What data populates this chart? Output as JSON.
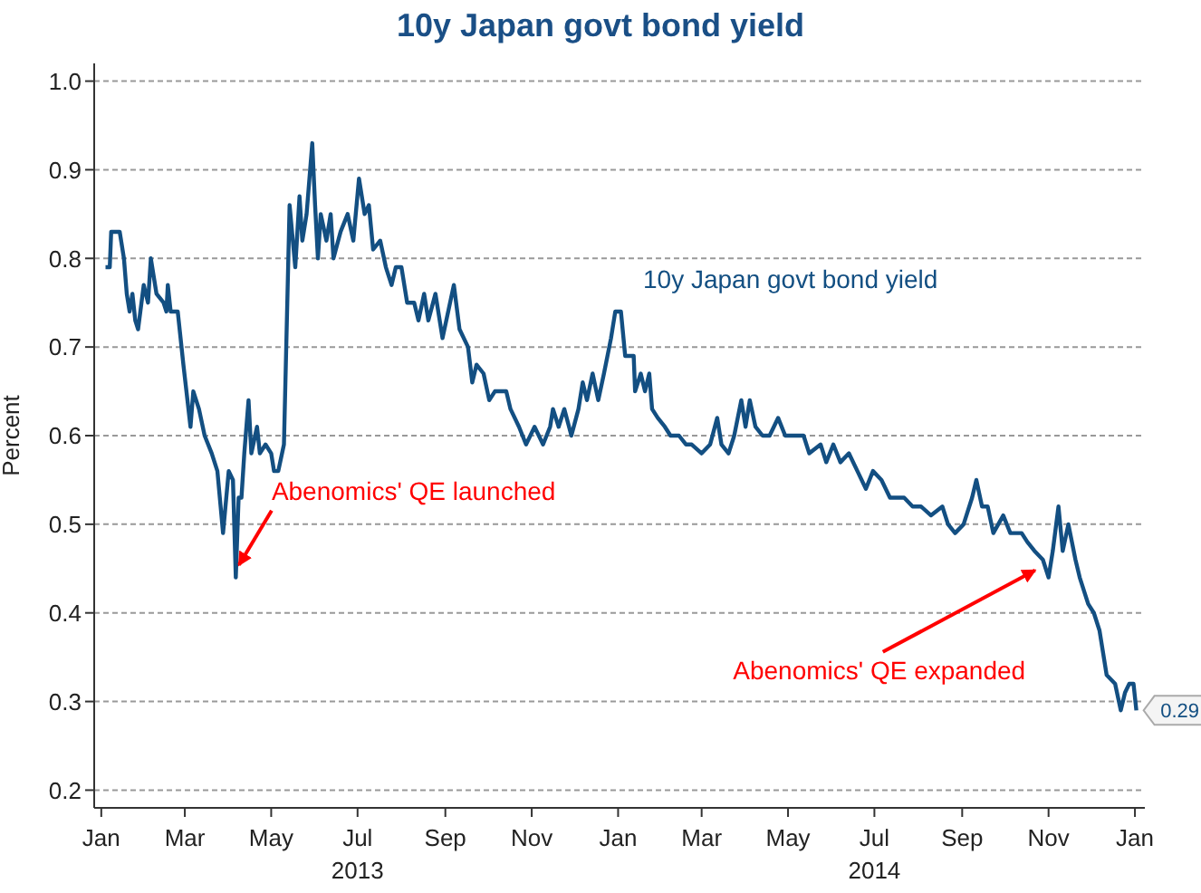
{
  "chart_data": {
    "type": "line",
    "title": "10y Japan govt bond yield",
    "ylabel": "Percent",
    "grid": "y",
    "legend": false,
    "marker": "none",
    "line_style": "solid",
    "xlim": [
      "2012-12-27",
      "2015-01-08"
    ],
    "xticks": [
      {
        "value": "2013-01-01",
        "label": "Jan"
      },
      {
        "value": "2013-03-01",
        "label": "Mar"
      },
      {
        "value": "2013-05-01",
        "label": "May"
      },
      {
        "value": "2013-07-01",
        "label": "Jul\n2013"
      },
      {
        "value": "2013-09-01",
        "label": "Sep"
      },
      {
        "value": "2013-11-01",
        "label": "Nov"
      },
      {
        "value": "2014-01-01",
        "label": "Jan"
      },
      {
        "value": "2014-03-01",
        "label": "Mar"
      },
      {
        "value": "2014-05-01",
        "label": "May"
      },
      {
        "value": "2014-07-01",
        "label": "Jul\n2014"
      },
      {
        "value": "2014-09-01",
        "label": "Sep"
      },
      {
        "value": "2014-11-01",
        "label": "Nov"
      },
      {
        "value": "2015-01-01",
        "label": "Jan"
      }
    ],
    "ylim": [
      0.18,
      1.02
    ],
    "yticks": [
      0.2,
      0.3,
      0.4,
      0.5,
      0.6,
      0.7,
      0.8,
      0.9,
      {
        "value": 1,
        "label": "1.0"
      }
    ],
    "annotations": [
      {
        "text": "Abenomics' QE launched",
        "x": "2013-04-07",
        "y": 0.45
      },
      {
        "text": "Abenomics' QE expanded",
        "x": "2014-10-25",
        "y": 0.45
      }
    ],
    "x": [
      "2013-01-04",
      "2013-01-07",
      "2013-01-08",
      "2013-01-14",
      "2013-01-15",
      "2013-01-17",
      "2013-01-19",
      "2013-01-21",
      "2013-01-23",
      "2013-01-25",
      "2013-01-27",
      "2013-01-31",
      "2013-02-03",
      "2013-02-05",
      "2013-02-09",
      "2013-02-14",
      "2013-02-16",
      "2013-02-17",
      "2013-02-19",
      "2013-02-24",
      "2013-02-28",
      "2013-03-05",
      "2013-03-07",
      "2013-03-11",
      "2013-03-15",
      "2013-03-20",
      "2013-03-24",
      "2013-03-28",
      "2013-04-01",
      "2013-04-04",
      "2013-04-06",
      "2013-04-08",
      "2013-04-10",
      "2013-04-12",
      "2013-04-15",
      "2013-04-17",
      "2013-04-21",
      "2013-04-23",
      "2013-04-27",
      "2013-05-01",
      "2013-05-03",
      "2013-05-06",
      "2013-05-10",
      "2013-05-14",
      "2013-05-18",
      "2013-05-21",
      "2013-05-23",
      "2013-05-26",
      "2013-05-30",
      "2013-06-01",
      "2013-06-03",
      "2013-06-05",
      "2013-06-09",
      "2013-06-12",
      "2013-06-14",
      "2013-06-19",
      "2013-06-24",
      "2013-06-28",
      "2013-07-02",
      "2013-07-06",
      "2013-07-09",
      "2013-07-12",
      "2013-07-17",
      "2013-07-21",
      "2013-07-25",
      "2013-07-28",
      "2013-08-01",
      "2013-08-05",
      "2013-08-10",
      "2013-08-13",
      "2013-08-17",
      "2013-08-20",
      "2013-08-25",
      "2013-08-30",
      "2013-09-03",
      "2013-09-07",
      "2013-09-11",
      "2013-09-17",
      "2013-09-20",
      "2013-09-23",
      "2013-09-28",
      "2013-10-02",
      "2013-10-06",
      "2013-10-14",
      "2013-10-17",
      "2013-10-23",
      "2013-10-28",
      "2013-11-03",
      "2013-11-09",
      "2013-11-14",
      "2013-11-16",
      "2013-11-20",
      "2013-11-24",
      "2013-11-29",
      "2013-12-04",
      "2013-12-07",
      "2013-12-10",
      "2013-12-14",
      "2013-12-18",
      "2013-12-22",
      "2013-12-27",
      "2013-12-30",
      "2014-01-03",
      "2014-01-06",
      "2014-01-12",
      "2014-01-13",
      "2014-01-17",
      "2014-01-20",
      "2014-01-23",
      "2014-01-25",
      "2014-01-29",
      "2014-02-03",
      "2014-02-07",
      "2014-02-13",
      "2014-02-18",
      "2014-02-22",
      "2014-03-01",
      "2014-03-07",
      "2014-03-12",
      "2014-03-15",
      "2014-03-20",
      "2014-03-24",
      "2014-03-29",
      "2014-04-01",
      "2014-04-04",
      "2014-04-08",
      "2014-04-13",
      "2014-04-18",
      "2014-04-24",
      "2014-04-29",
      "2014-05-06",
      "2014-05-12",
      "2014-05-16",
      "2014-05-24",
      "2014-05-28",
      "2014-06-02",
      "2014-06-07",
      "2014-06-13",
      "2014-06-19",
      "2014-06-25",
      "2014-06-30",
      "2014-07-06",
      "2014-07-12",
      "2014-07-17",
      "2014-07-22",
      "2014-07-28",
      "2014-08-03",
      "2014-08-10",
      "2014-08-18",
      "2014-08-22",
      "2014-08-27",
      "2014-09-02",
      "2014-09-08",
      "2014-09-11",
      "2014-09-15",
      "2014-09-19",
      "2014-09-23",
      "2014-09-30",
      "2014-10-05",
      "2014-10-13",
      "2014-10-17",
      "2014-10-22",
      "2014-10-28",
      "2014-11-01",
      "2014-11-04",
      "2014-11-08",
      "2014-11-11",
      "2014-11-15",
      "2014-11-20",
      "2014-11-23",
      "2014-11-29",
      "2014-12-03",
      "2014-12-07",
      "2014-12-12",
      "2014-12-18",
      "2014-12-22",
      "2014-12-25",
      "2014-12-28",
      "2014-12-31",
      "2015-01-02"
    ],
    "series": [
      {
        "name": "10y Japan govt bond yield",
        "color": "#134f82",
        "values": [
          0.79,
          0.79,
          0.83,
          0.83,
          0.82,
          0.8,
          0.76,
          0.74,
          0.76,
          0.73,
          0.72,
          0.77,
          0.75,
          0.8,
          0.76,
          0.75,
          0.74,
          0.77,
          0.74,
          0.74,
          0.68,
          0.61,
          0.65,
          0.63,
          0.6,
          0.58,
          0.56,
          0.49,
          0.56,
          0.55,
          0.44,
          0.53,
          0.53,
          0.58,
          0.64,
          0.58,
          0.61,
          0.58,
          0.59,
          0.58,
          0.56,
          0.56,
          0.59,
          0.86,
          0.79,
          0.87,
          0.82,
          0.85,
          0.93,
          0.86,
          0.8,
          0.85,
          0.82,
          0.85,
          0.8,
          0.83,
          0.85,
          0.82,
          0.89,
          0.85,
          0.86,
          0.81,
          0.82,
          0.79,
          0.77,
          0.79,
          0.79,
          0.75,
          0.75,
          0.73,
          0.76,
          0.73,
          0.76,
          0.71,
          0.74,
          0.77,
          0.72,
          0.7,
          0.66,
          0.68,
          0.67,
          0.64,
          0.65,
          0.65,
          0.63,
          0.61,
          0.59,
          0.61,
          0.59,
          0.61,
          0.63,
          0.61,
          0.63,
          0.6,
          0.63,
          0.66,
          0.64,
          0.67,
          0.64,
          0.67,
          0.71,
          0.74,
          0.74,
          0.69,
          0.69,
          0.65,
          0.67,
          0.65,
          0.67,
          0.63,
          0.62,
          0.61,
          0.6,
          0.6,
          0.59,
          0.59,
          0.58,
          0.59,
          0.62,
          0.59,
          0.58,
          0.6,
          0.64,
          0.61,
          0.64,
          0.61,
          0.6,
          0.6,
          0.62,
          0.6,
          0.6,
          0.6,
          0.58,
          0.59,
          0.57,
          0.59,
          0.57,
          0.58,
          0.56,
          0.54,
          0.56,
          0.55,
          0.53,
          0.53,
          0.53,
          0.52,
          0.52,
          0.51,
          0.52,
          0.5,
          0.49,
          0.5,
          0.53,
          0.55,
          0.52,
          0.52,
          0.49,
          0.51,
          0.49,
          0.49,
          0.48,
          0.47,
          0.46,
          0.44,
          0.47,
          0.52,
          0.47,
          0.5,
          0.46,
          0.44,
          0.41,
          0.4,
          0.38,
          0.33,
          0.32,
          0.29,
          0.31,
          0.32,
          0.32,
          0.29
        ],
        "value_labels": [
          null,
          null,
          null,
          null,
          null,
          null,
          null,
          null,
          null,
          null,
          null,
          null,
          null,
          null,
          null,
          null,
          null,
          null,
          null,
          null,
          null,
          null,
          null,
          null,
          null,
          null,
          null,
          null,
          null,
          null,
          null,
          null,
          null,
          null,
          null,
          null,
          null,
          null,
          null,
          null,
          null,
          null,
          null,
          null,
          null,
          null,
          null,
          null,
          null,
          null,
          null,
          null,
          null,
          null,
          null,
          null,
          null,
          null,
          null,
          null,
          null,
          null,
          null,
          null,
          null,
          null,
          null,
          null,
          null,
          null,
          null,
          null,
          null,
          null,
          null,
          null,
          null,
          null,
          null,
          null,
          null,
          null,
          null,
          null,
          null,
          null,
          null,
          null,
          null,
          null,
          null,
          null,
          null,
          null,
          null,
          null,
          null,
          null,
          null,
          null,
          null,
          null,
          null,
          null,
          null,
          null,
          null,
          null,
          null,
          null,
          null,
          null,
          null,
          null,
          null,
          null,
          null,
          null,
          null,
          null,
          null,
          null,
          null,
          null,
          null,
          null,
          null,
          null,
          null,
          null,
          null,
          null,
          null,
          null,
          null,
          null,
          null,
          null,
          null,
          null,
          null,
          null,
          null,
          null,
          null,
          null,
          null,
          null,
          null,
          null,
          null,
          null,
          null,
          null,
          null,
          null,
          null,
          null,
          null,
          null,
          null,
          null,
          null,
          null,
          null,
          null,
          null,
          null,
          null,
          null,
          null,
          null,
          null,
          null,
          null,
          null,
          null,
          null,
          null,
          "0.29"
        ]
      }
    ]
  }
}
